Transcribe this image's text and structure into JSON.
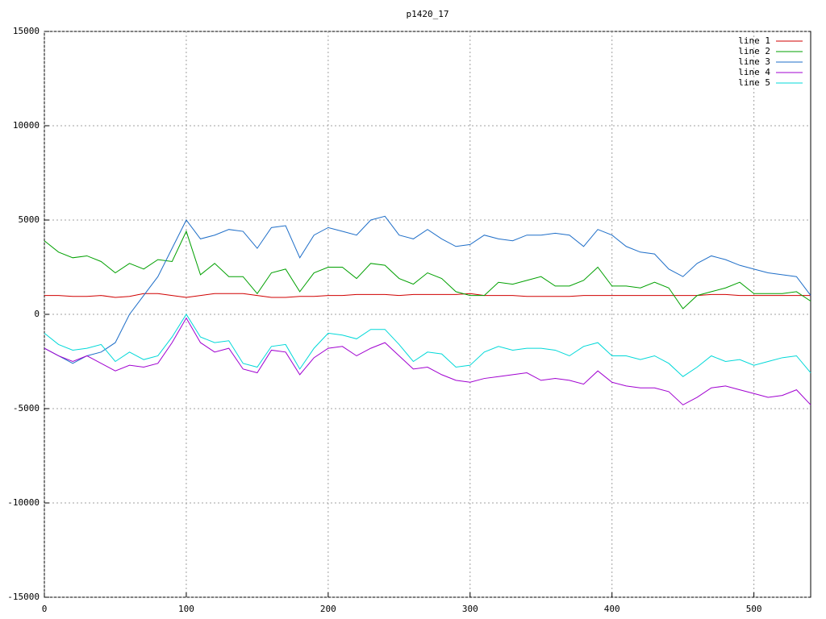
{
  "chart_data": {
    "type": "line",
    "title": "p1420_17",
    "x": [
      0,
      10,
      20,
      30,
      40,
      50,
      60,
      70,
      80,
      90,
      100,
      110,
      120,
      130,
      140,
      150,
      160,
      170,
      180,
      190,
      200,
      210,
      220,
      230,
      240,
      250,
      260,
      270,
      280,
      290,
      300,
      310,
      320,
      330,
      340,
      350,
      360,
      370,
      380,
      390,
      400,
      410,
      420,
      430,
      440,
      450,
      460,
      470,
      480,
      490,
      500,
      510,
      520,
      530,
      540
    ],
    "series": [
      {
        "name": "line 1",
        "color": "#d00000",
        "values": [
          1000,
          1000,
          950,
          950,
          1000,
          900,
          950,
          1100,
          1100,
          1000,
          900,
          1000,
          1100,
          1100,
          1100,
          1000,
          900,
          900,
          950,
          950,
          1000,
          1000,
          1050,
          1050,
          1050,
          1000,
          1050,
          1050,
          1050,
          1050,
          1100,
          1000,
          1000,
          1000,
          950,
          950,
          950,
          950,
          1000,
          1000,
          1000,
          1000,
          1000,
          1000,
          1000,
          1000,
          1000,
          1050,
          1050,
          1000,
          1000,
          1000,
          1000,
          1000,
          1000
        ]
      },
      {
        "name": "line 2",
        "color": "#00a000",
        "values": [
          3900,
          3300,
          3000,
          3100,
          2800,
          2200,
          2700,
          2400,
          2900,
          2800,
          4400,
          2100,
          2700,
          2000,
          2000,
          1100,
          2200,
          2400,
          1200,
          2200,
          2500,
          2500,
          1900,
          2700,
          2600,
          1900,
          1600,
          2200,
          1900,
          1200,
          1000,
          1000,
          1700,
          1600,
          1800,
          2000,
          1500,
          1500,
          1800,
          2500,
          1500,
          1500,
          1400,
          1700,
          1400,
          300,
          1000,
          1200,
          1400,
          1700,
          1100,
          1100,
          1100,
          1200,
          700
        ]
      },
      {
        "name": "line 3",
        "color": "#1e6ec8",
        "values": [
          -1800,
          -2200,
          -2600,
          -2200,
          -2000,
          -1500,
          0,
          1000,
          2000,
          3500,
          5000,
          4000,
          4200,
          4500,
          4400,
          3500,
          4600,
          4700,
          3000,
          4200,
          4600,
          4400,
          4200,
          5000,
          5200,
          4200,
          4000,
          4500,
          4000,
          3600,
          3700,
          4200,
          4000,
          3900,
          4200,
          4200,
          4300,
          4200,
          3600,
          4500,
          4200,
          3600,
          3300,
          3200,
          2400,
          2000,
          2700,
          3100,
          2900,
          2600,
          2400,
          2200,
          2100,
          2000,
          1000
        ]
      },
      {
        "name": "line 4",
        "color": "#a000d0",
        "values": [
          -1800,
          -2200,
          -2500,
          -2200,
          -2600,
          -3000,
          -2700,
          -2800,
          -2600,
          -1500,
          -200,
          -1500,
          -2000,
          -1800,
          -2900,
          -3100,
          -1900,
          -2000,
          -3200,
          -2300,
          -1800,
          -1700,
          -2200,
          -1800,
          -1500,
          -2200,
          -2900,
          -2800,
          -3200,
          -3500,
          -3600,
          -3400,
          -3300,
          -3200,
          -3100,
          -3500,
          -3400,
          -3500,
          -3700,
          -3000,
          -3600,
          -3800,
          -3900,
          -3900,
          -4100,
          -4800,
          -4400,
          -3900,
          -3800,
          -4000,
          -4200,
          -4400,
          -4300,
          -4000,
          -4800
        ]
      },
      {
        "name": "line 5",
        "color": "#00d8d8",
        "values": [
          -1000,
          -1600,
          -1900,
          -1800,
          -1600,
          -2500,
          -2000,
          -2400,
          -2200,
          -1200,
          0,
          -1200,
          -1500,
          -1400,
          -2600,
          -2800,
          -1700,
          -1600,
          -2900,
          -1800,
          -1000,
          -1100,
          -1300,
          -800,
          -800,
          -1600,
          -2500,
          -2000,
          -2100,
          -2800,
          -2700,
          -2000,
          -1700,
          -1900,
          -1800,
          -1800,
          -1900,
          -2200,
          -1700,
          -1500,
          -2200,
          -2200,
          -2400,
          -2200,
          -2600,
          -3300,
          -2800,
          -2200,
          -2500,
          -2400,
          -2700,
          -2500,
          -2300,
          -2200,
          -3100
        ]
      }
    ],
    "xlim": [
      0,
      540
    ],
    "ylim": [
      -15000,
      15000
    ],
    "xticks": [
      0,
      100,
      200,
      300,
      400,
      500
    ],
    "yticks": [
      -15000,
      -10000,
      -5000,
      0,
      5000,
      10000,
      15000
    ],
    "grid": true,
    "legend": "top-right"
  }
}
